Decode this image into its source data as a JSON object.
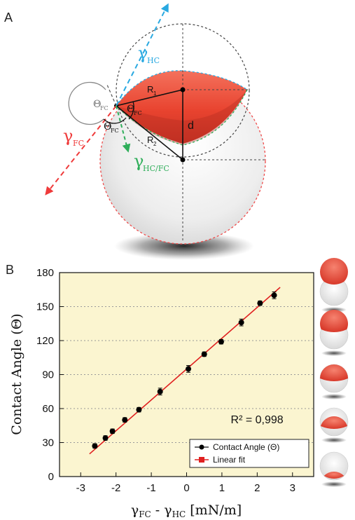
{
  "panels": {
    "a_label": "A",
    "b_label": "B"
  },
  "diagram": {
    "gamma_hc": {
      "symbol": "γ",
      "sub": "HC",
      "color": "#29a9e1"
    },
    "gamma_fc": {
      "symbol": "γ",
      "sub": "FC",
      "color": "#ef3b3b"
    },
    "gamma_hcfc": {
      "symbol": "γ",
      "sub": "HC/FC",
      "color": "#2fae5a"
    },
    "theta_fc_outer": {
      "symbol": "Θ",
      "sub": "FC"
    },
    "theta_fc_inner": {
      "symbol": "Θ",
      "sub": "FC"
    },
    "theta_fc_lower": {
      "symbol": "Θ",
      "sub": "FC"
    },
    "r1": {
      "symbol": "R",
      "sub": "1"
    },
    "r2": {
      "symbol": "R",
      "sub": "2"
    },
    "d_label": "d"
  },
  "colors": {
    "background": "#fbf5d0",
    "data_marker": "#000000",
    "fit_line": "#e02020",
    "droplet_red": "#e8432f",
    "grid": "#999999"
  },
  "chart_data": {
    "type": "scatter",
    "title": "",
    "xlabel": "γFC - γHC [mN/m]",
    "xlabel_parts": {
      "g1": "γ",
      "s1": "FC",
      "mid": " - ",
      "g2": "γ",
      "s2": "HC",
      "unit": " [mN/m]"
    },
    "ylabel": "Contact Angle (Θ)",
    "xlim": [
      -3.6,
      3.6
    ],
    "ylim": [
      0,
      180
    ],
    "xticks": [
      -3,
      -2,
      -1,
      0,
      1,
      2,
      3
    ],
    "xtick_labels": [
      "-3",
      "-2",
      "-1",
      "0",
      "1",
      "2",
      "3"
    ],
    "yticks": [
      0,
      30,
      60,
      90,
      120,
      150,
      180
    ],
    "ytick_labels": [
      "0",
      "30",
      "60",
      "90",
      "120",
      "150",
      "180"
    ],
    "grid": {
      "horizontal": true,
      "style": "dotted"
    },
    "legend_position": "bottom-right",
    "series": [
      {
        "name": "Contact Angle (Θ)",
        "kind": "points-with-errorbars",
        "points": [
          {
            "x": -2.6,
            "y": 27,
            "err": 2
          },
          {
            "x": -2.3,
            "y": 34,
            "err": 2
          },
          {
            "x": -2.1,
            "y": 40,
            "err": 2
          },
          {
            "x": -1.75,
            "y": 50,
            "err": 2
          },
          {
            "x": -1.35,
            "y": 59,
            "err": 2
          },
          {
            "x": -0.75,
            "y": 75,
            "err": 3
          },
          {
            "x": 0.05,
            "y": 95,
            "err": 3
          },
          {
            "x": 0.5,
            "y": 108,
            "err": 2
          },
          {
            "x": 0.98,
            "y": 119,
            "err": 2
          },
          {
            "x": 1.55,
            "y": 136,
            "err": 3
          },
          {
            "x": 2.08,
            "y": 153,
            "err": 2
          },
          {
            "x": 2.48,
            "y": 160,
            "err": 3
          }
        ]
      },
      {
        "name": "Linear fit",
        "kind": "line",
        "x": [
          -2.75,
          2.65
        ],
        "y": [
          20,
          167
        ]
      }
    ],
    "annotation": {
      "text": "R² = 0,998",
      "x": 1.25,
      "y": 47
    }
  },
  "side_spheres": [
    {
      "fill_fraction": 0.85
    },
    {
      "fill_fraction": 0.7
    },
    {
      "fill_fraction": 0.5
    },
    {
      "fill_fraction": 0.35
    },
    {
      "fill_fraction": 0.15
    }
  ]
}
